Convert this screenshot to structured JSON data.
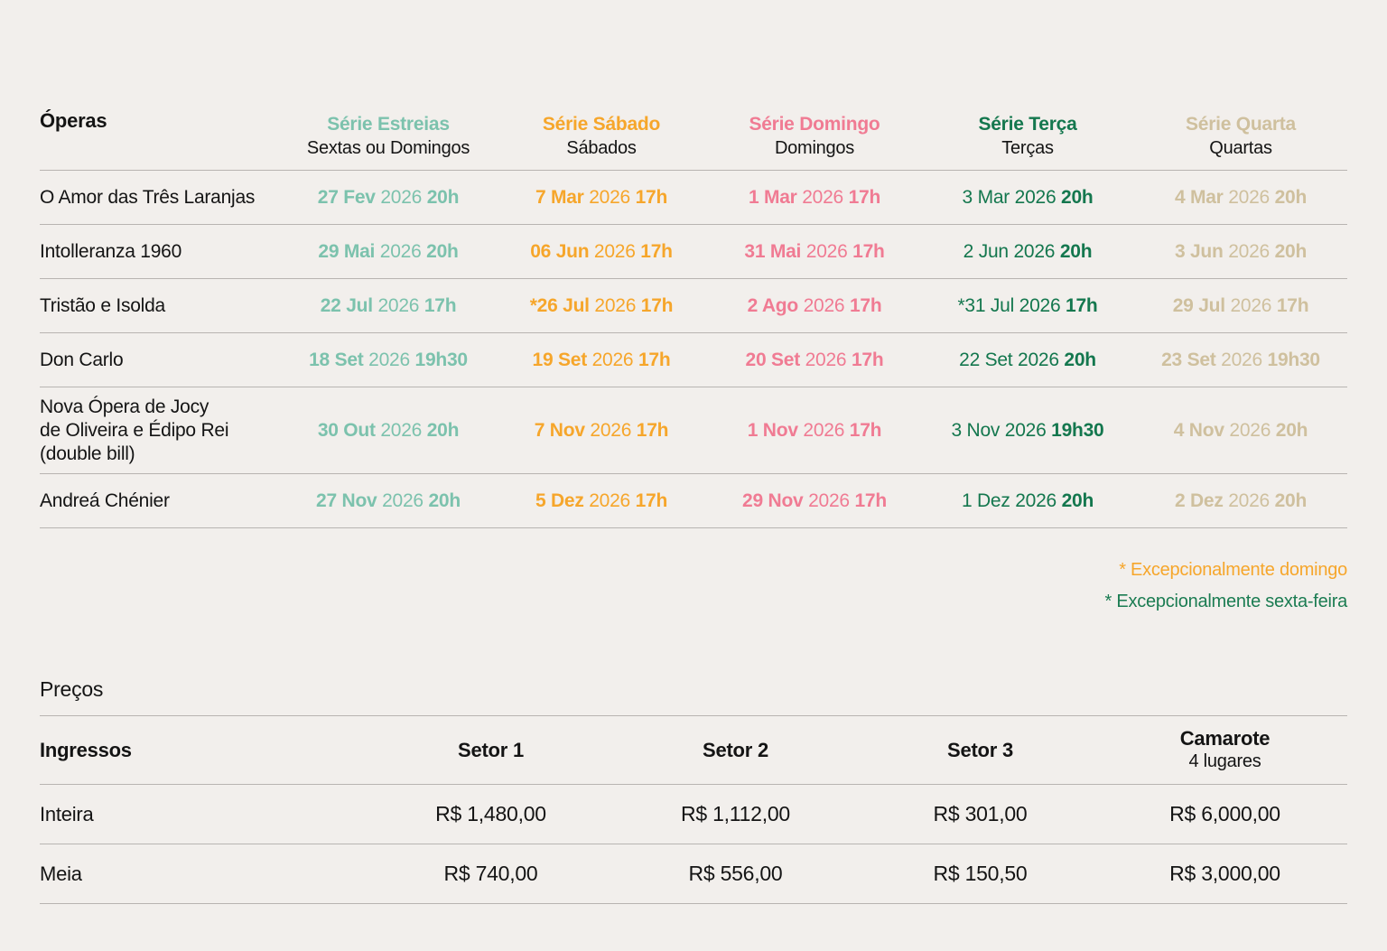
{
  "page": {
    "background": "#F2EFEC",
    "divider_color": "#B8B4B1",
    "text_color": "#141414"
  },
  "schedule": {
    "operas_header": "Óperas",
    "series": [
      {
        "title": "Série Estreias",
        "subtitle": "Sextas ou Domingos",
        "color": "#7CC2AD"
      },
      {
        "title": "Série Sábado",
        "subtitle": "Sábados",
        "color": "#F6A62B"
      },
      {
        "title": "Série Domingo",
        "subtitle": "Domingos",
        "color": "#F07B93"
      },
      {
        "title": "Série Terça",
        "subtitle": "Terças",
        "color": "#14774E"
      },
      {
        "title": "Série Quarta",
        "subtitle": "Quartas",
        "color": "#CFC09E"
      }
    ],
    "rows": [
      {
        "opera": "O Amor das Três Laranjas",
        "dates": [
          {
            "day": "27 Fev",
            "year": "2026",
            "time": "20h"
          },
          {
            "day": "7 Mar",
            "year": "2026",
            "time": "17h"
          },
          {
            "day": "1 Mar",
            "year": "2026",
            "time": "17h"
          },
          {
            "day": "3 Mar",
            "year": "2026",
            "time": "20h"
          },
          {
            "day": "4 Mar",
            "year": "2026",
            "time": "20h"
          }
        ]
      },
      {
        "opera": "Intolleranza 1960",
        "dates": [
          {
            "day": "29 Mai",
            "year": "2026",
            "time": "20h"
          },
          {
            "day": "06 Jun",
            "year": "2026",
            "time": "17h"
          },
          {
            "day": "31 Mai",
            "year": "2026",
            "time": "17h"
          },
          {
            "day": "2 Jun",
            "year": "2026",
            "time": "20h"
          },
          {
            "day": "3 Jun",
            "year": "2026",
            "time": "20h"
          }
        ]
      },
      {
        "opera": "Tristão e Isolda",
        "dates": [
          {
            "day": "22 Jul",
            "year": "2026",
            "time": "17h"
          },
          {
            "day": "*26 Jul",
            "year": "2026",
            "time": "17h"
          },
          {
            "day": "2 Ago",
            "year": "2026",
            "time": "17h"
          },
          {
            "day": "*31 Jul",
            "year": "2026",
            "time": "17h"
          },
          {
            "day": "29 Jul",
            "year": "2026",
            "time": "17h"
          }
        ]
      },
      {
        "opera": "Don Carlo",
        "dates": [
          {
            "day": "18 Set",
            "year": "2026",
            "time": "19h30"
          },
          {
            "day": "19 Set",
            "year": "2026",
            "time": "17h"
          },
          {
            "day": "20 Set",
            "year": "2026",
            "time": "17h"
          },
          {
            "day": "22 Set",
            "year": "2026",
            "time": "20h"
          },
          {
            "day": "23 Set",
            "year": "2026",
            "time": "19h30"
          }
        ]
      },
      {
        "opera": "Nova Ópera de Jocy\nde Oliveira e Édipo Rei\n(double bill)",
        "dates": [
          {
            "day": "30 Out",
            "year": "2026",
            "time": "20h"
          },
          {
            "day": "7 Nov",
            "year": "2026",
            "time": "17h"
          },
          {
            "day": "1 Nov",
            "year": "2026",
            "time": "17h"
          },
          {
            "day": "3 Nov",
            "year": "2026",
            "time": "19h30"
          },
          {
            "day": "4 Nov",
            "year": "2026",
            "time": "20h"
          }
        ]
      },
      {
        "opera": "Andreá Chénier",
        "dates": [
          {
            "day": "27 Nov",
            "year": "2026",
            "time": "20h"
          },
          {
            "day": "5 Dez",
            "year": "2026",
            "time": "17h"
          },
          {
            "day": "29 Nov",
            "year": "2026",
            "time": "17h"
          },
          {
            "day": "1 Dez",
            "year": "2026",
            "time": "20h"
          },
          {
            "day": "2 Dez",
            "year": "2026",
            "time": "20h"
          }
        ]
      }
    ],
    "footnotes": [
      {
        "text": "* Excepcionalmente domingo",
        "color": "#F6A62B"
      },
      {
        "text": "* Excepcionalmente sexta-feira",
        "color": "#1B7C52"
      }
    ]
  },
  "prices": {
    "heading": "Preços",
    "row_header": "Ingressos",
    "columns": [
      {
        "title": "Setor 1"
      },
      {
        "title": "Setor 2"
      },
      {
        "title": "Setor 3"
      },
      {
        "title": "Camarote",
        "subtitle": "4 lugares"
      }
    ],
    "rows": [
      {
        "label": "Inteira",
        "values": [
          "R$ 1,480,00",
          "R$ 1,112,00",
          "R$ 301,00",
          "R$ 6,000,00"
        ]
      },
      {
        "label": "Meia",
        "values": [
          "R$ 740,00",
          "R$ 556,00",
          "R$ 150,50",
          "R$ 3,000,00"
        ]
      }
    ]
  }
}
